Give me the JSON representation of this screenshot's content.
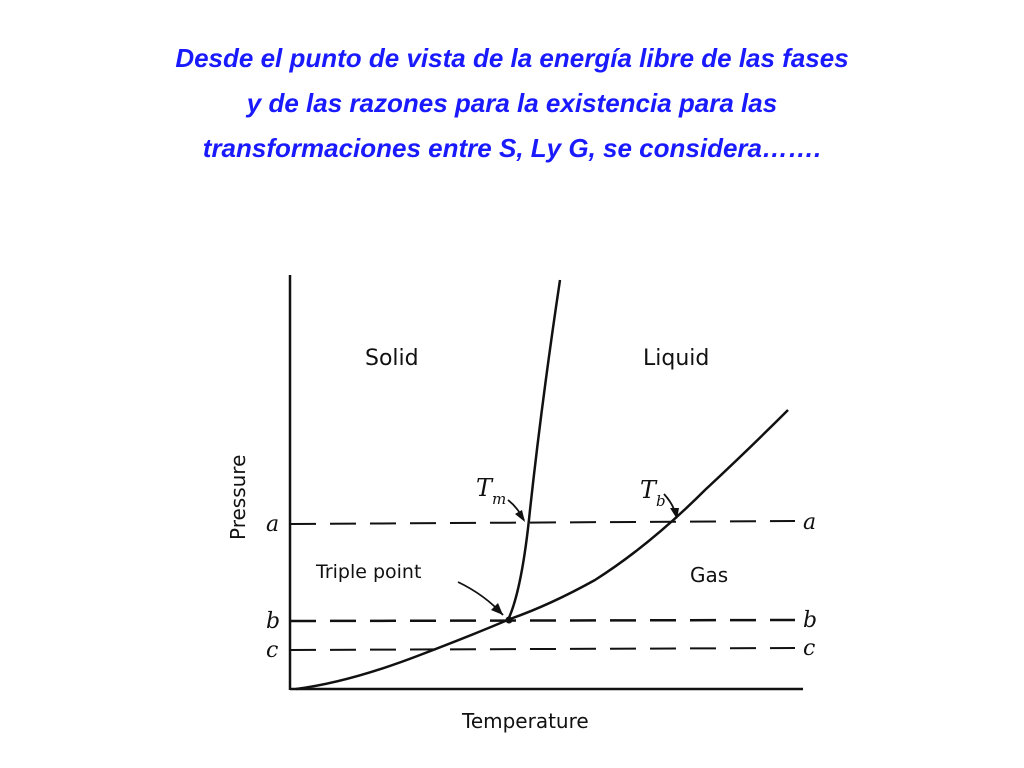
{
  "title": {
    "lines": [
      "Desde el punto de vista de la energía libre  de las fases",
      "y de las razones para la existencia para las",
      "transformaciones  entre S, Ly G, se considera……."
    ],
    "color": "#1a1aff"
  },
  "diagram": {
    "axis_x_label": "Temperature",
    "axis_y_label": "Pressure",
    "region_solid": "Solid",
    "region_liquid": "Liquid",
    "region_gas": "Gas",
    "melting_label": "T",
    "melting_sub": "m",
    "boiling_label": "T",
    "boiling_sub": "b",
    "triple_point_label": "Triple point",
    "level_a": "a",
    "level_b": "b",
    "level_c": "c"
  }
}
